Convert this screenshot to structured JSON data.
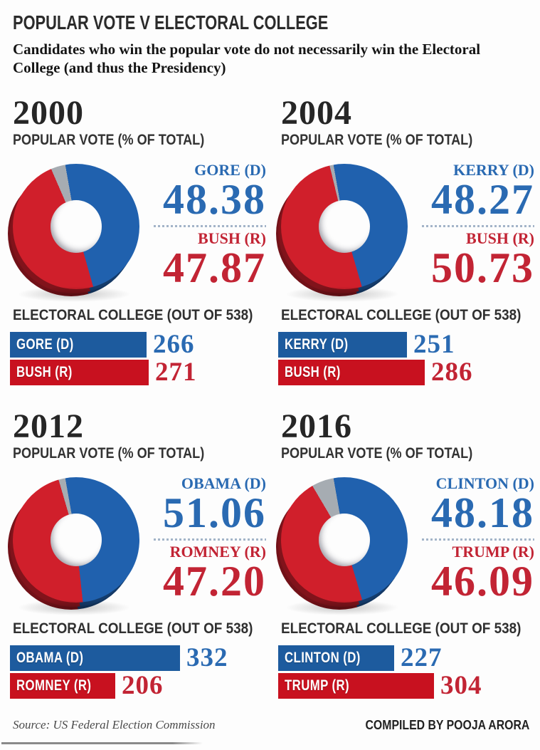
{
  "page": {
    "title": "POPULAR VOTE V ELECTORAL COLLEGE",
    "subtitle": "Candidates who win the popular vote do not necessarily win the Electoral College (and thus the Presidency)",
    "source": "Source: US Federal Election Commission",
    "credit": "COMPILED BY POOJA ARORA"
  },
  "colors": {
    "dem": "#2061ae",
    "rep": "#d01f2b",
    "other": "#a6acb2",
    "dem_text": "#2a6ab2",
    "rep_text": "#c22434",
    "dem_bar": "#1d5b9e",
    "rep_bar": "#c8111f"
  },
  "panels": [
    {
      "year": "2000",
      "popular_label": "POPULAR VOTE (% OF TOTAL)",
      "electoral_label": "ELECTORAL COLLEGE (OUT OF 538)",
      "dem": {
        "label": "GORE (D)",
        "value": "48.38"
      },
      "rep": {
        "label": "BUSH (R)",
        "value": "47.87"
      },
      "electoral": {
        "dem": {
          "label": "GORE (D)",
          "value": 266
        },
        "rep": {
          "label": "BUSH (R)",
          "value": 271
        }
      }
    },
    {
      "year": "2004",
      "popular_label": "POPULAR VOTE (% OF TOTAL)",
      "electoral_label": "ELECTORAL COLLEGE (OUT OF 538)",
      "dem": {
        "label": "KERRY (D)",
        "value": "48.27"
      },
      "rep": {
        "label": "BUSH (R)",
        "value": "50.73"
      },
      "electoral": {
        "dem": {
          "label": "KERRY (D)",
          "value": 251
        },
        "rep": {
          "label": "BUSH (R)",
          "value": 286
        }
      }
    },
    {
      "year": "2012",
      "popular_label": "POPULAR VOTE (% OF TOTAL)",
      "electoral_label": "ELECTORAL COLLEGE (OUT OF 538)",
      "dem": {
        "label": "OBAMA (D)",
        "value": "51.06"
      },
      "rep": {
        "label": "ROMNEY (R)",
        "value": "47.20"
      },
      "electoral": {
        "dem": {
          "label": "OBAMA (D)",
          "value": 332
        },
        "rep": {
          "label": "ROMNEY (R)",
          "value": 206
        }
      }
    },
    {
      "year": "2016",
      "popular_label": "POPULAR VOTE (% OF TOTAL)",
      "electoral_label": "ELECTORAL COLLEGE (OUT OF 538)",
      "dem": {
        "label": "CLINTON (D)",
        "value": "48.18"
      },
      "rep": {
        "label": "TRUMP (R)",
        "value": "46.09"
      },
      "electoral": {
        "dem": {
          "label": "CLINTON (D)",
          "value": 227
        },
        "rep": {
          "label": "TRUMP (R)",
          "value": 304
        }
      }
    }
  ],
  "chart_data": [
    {
      "type": "pie",
      "title": "2000 Popular vote (% of total)",
      "labels": [
        "GORE (D)",
        "BUSH (R)",
        "Other"
      ],
      "values": [
        48.38,
        47.87,
        3.75
      ]
    },
    {
      "type": "bar",
      "title": "2000 Electoral College (out of 538)",
      "categories": [
        "GORE (D)",
        "BUSH (R)"
      ],
      "values": [
        266,
        271
      ],
      "xlim": [
        0,
        538
      ]
    },
    {
      "type": "pie",
      "title": "2004 Popular vote (% of total)",
      "labels": [
        "KERRY (D)",
        "BUSH (R)",
        "Other"
      ],
      "values": [
        48.27,
        50.73,
        1.0
      ]
    },
    {
      "type": "bar",
      "title": "2004 Electoral College (out of 538)",
      "categories": [
        "KERRY (D)",
        "BUSH (R)"
      ],
      "values": [
        251,
        286
      ],
      "xlim": [
        0,
        538
      ]
    },
    {
      "type": "pie",
      "title": "2012 Popular vote (% of total)",
      "labels": [
        "OBAMA (D)",
        "ROMNEY (R)",
        "Other"
      ],
      "values": [
        51.06,
        47.2,
        1.74
      ]
    },
    {
      "type": "bar",
      "title": "2012 Electoral College (out of 538)",
      "categories": [
        "OBAMA (D)",
        "ROMNEY (R)"
      ],
      "values": [
        332,
        206
      ],
      "xlim": [
        0,
        538
      ]
    },
    {
      "type": "pie",
      "title": "2016 Popular vote (% of total)",
      "labels": [
        "CLINTON (D)",
        "TRUMP (R)",
        "Other"
      ],
      "values": [
        48.18,
        46.09,
        5.73
      ]
    },
    {
      "type": "bar",
      "title": "2016 Electoral College (out of 538)",
      "categories": [
        "CLINTON (D)",
        "TRUMP (R)"
      ],
      "values": [
        227,
        304
      ],
      "xlim": [
        0,
        538
      ]
    }
  ]
}
